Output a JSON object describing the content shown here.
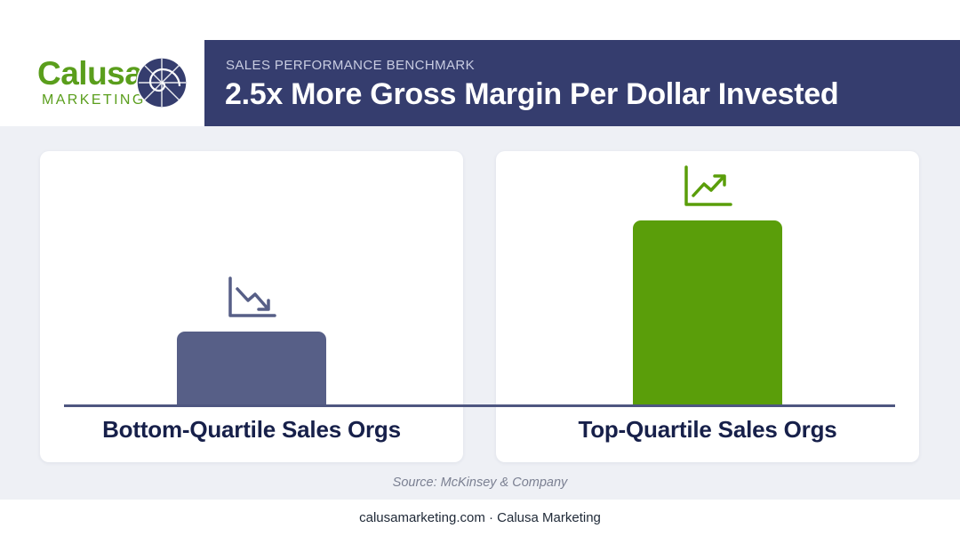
{
  "brand": {
    "name": "Calusa",
    "subtitle": "MARKETING",
    "logo_icon": "nautilus-shell-icon",
    "green": "#5a9e1c",
    "navy": "#353d6e"
  },
  "header": {
    "eyebrow": "SALES PERFORMANCE BENCHMARK",
    "title": "2.5x More Gross Margin Per Dollar Invested"
  },
  "chart_data": {
    "type": "bar",
    "title": "2.5x More Gross Margin Per Dollar Invested",
    "categories": [
      "Bottom-Quartile Sales Orgs",
      "Top-Quartile Sales Orgs"
    ],
    "values": [
      1,
      2.5
    ],
    "colors": [
      "#575f87",
      "#5a9e0a"
    ],
    "icons": [
      "trending-down-icon",
      "trending-up-icon"
    ],
    "xlabel": "",
    "ylabel": "",
    "grid": false
  },
  "source": "Source: McKinsey & Company",
  "footer": "calusamarketing.com · Calusa Marketing"
}
